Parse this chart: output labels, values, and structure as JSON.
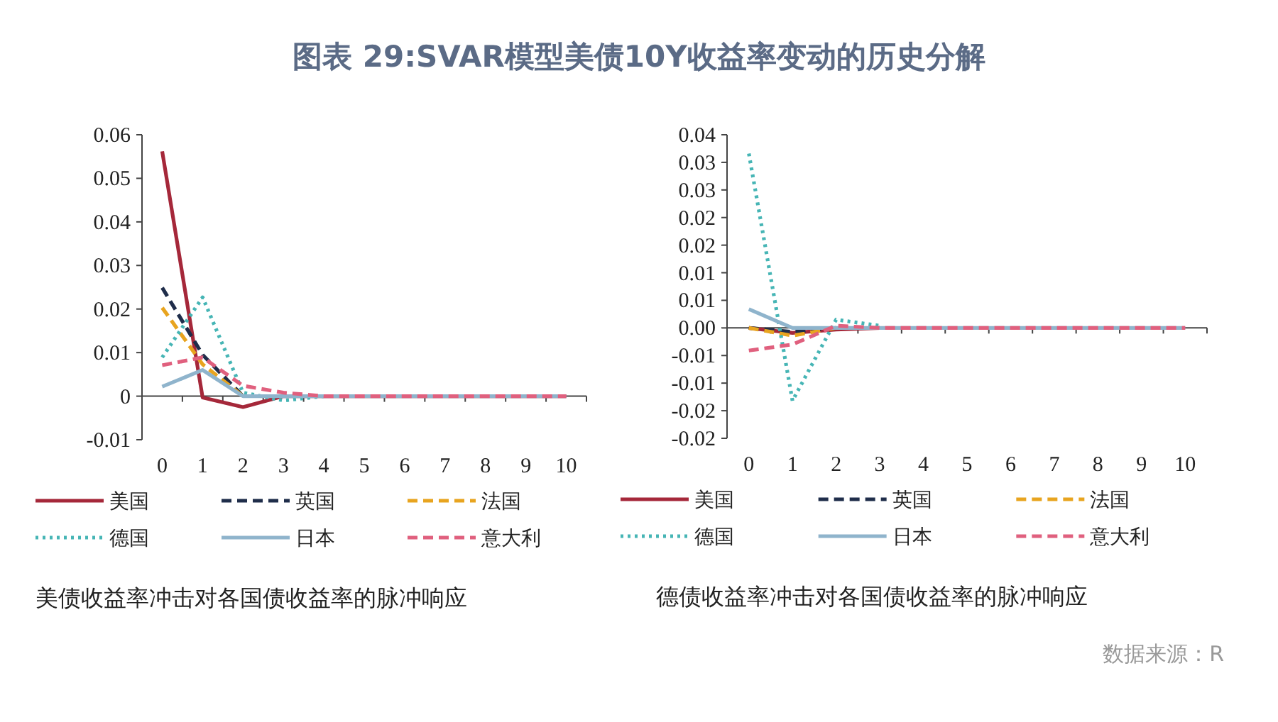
{
  "chart_data": [
    {
      "type": "line",
      "title": "图表 29:SVAR模型美债10Y收益率变动的历史分解",
      "annotations": [
        "美债收益率冲击对各国债收益率的脉冲响应"
      ],
      "categories": [
        "0",
        "1",
        "2",
        "3",
        "4",
        "5",
        "6",
        "7",
        "8",
        "9",
        "10"
      ],
      "ylim": [
        -0.01,
        0.06
      ],
      "yticks": [
        -0.01,
        0,
        0.01,
        0.02,
        0.03,
        0.04,
        0.05,
        0.06
      ],
      "legend": "bottom",
      "series": [
        {
          "name": "美国",
          "color": "#a5283a",
          "line_style": "solid",
          "values": [
            0.0562,
            -0.0003,
            -0.0025,
            0,
            0,
            0,
            0,
            0,
            0,
            0,
            0
          ]
        },
        {
          "name": "英国",
          "color": "#1f2d4a",
          "line_style": "dashed",
          "values": [
            0.0249,
            0.0095,
            0,
            null,
            null,
            null,
            null,
            null,
            null,
            null,
            null
          ]
        },
        {
          "name": "法国",
          "color": "#e8a41f",
          "line_style": "dashed",
          "values": [
            0.0203,
            0.0073,
            0,
            null,
            null,
            null,
            null,
            null,
            null,
            null,
            null
          ]
        },
        {
          "name": "德国",
          "color": "#46b5b5",
          "line_style": "dotted",
          "values": [
            0.0089,
            0.0227,
            0.0008,
            -0.001,
            0,
            null,
            null,
            null,
            null,
            null,
            null
          ]
        },
        {
          "name": "日本",
          "color": "#8fb4cc",
          "line_style": "solid",
          "values": [
            0.0022,
            0.006,
            0,
            0,
            0,
            0,
            0,
            0,
            0,
            0,
            0
          ]
        },
        {
          "name": "意大利",
          "color": "#e0607e",
          "line_style": "dashed",
          "values": [
            0.0071,
            0.0089,
            0.0024,
            0.0008,
            0,
            0,
            0,
            0,
            0,
            0,
            0
          ]
        }
      ]
    },
    {
      "type": "line",
      "annotations": [
        "德债收益率冲击对各国债收益率的脉冲响应",
        "数据来源：R"
      ],
      "categories": [
        "0",
        "1",
        "2",
        "3",
        "4",
        "5",
        "6",
        "7",
        "8",
        "9",
        "10"
      ],
      "ylim": [
        -0.02,
        0.035
      ],
      "yticks": [
        {
          "value": -0.02,
          "label": "-0.02"
        },
        {
          "value": -0.015,
          "label": "-0.02"
        },
        {
          "value": -0.01,
          "label": "-0.01"
        },
        {
          "value": -0.005,
          "label": "-0.01"
        },
        {
          "value": 0,
          "label": "0.00"
        },
        {
          "value": 0.005,
          "label": "0.01"
        },
        {
          "value": 0.01,
          "label": "0.01"
        },
        {
          "value": 0.015,
          "label": "0.02"
        },
        {
          "value": 0.02,
          "label": "0.02"
        },
        {
          "value": 0.025,
          "label": "0.03"
        },
        {
          "value": 0.03,
          "label": "0.03"
        },
        {
          "value": 0.035,
          "label": "0.04"
        }
      ],
      "legend": "bottom",
      "series": [
        {
          "name": "美国",
          "color": "#a5283a",
          "line_style": "solid",
          "values": [
            0,
            -0.0009,
            -0.0003,
            0,
            null,
            null,
            null,
            null,
            null,
            null,
            null
          ]
        },
        {
          "name": "英国",
          "color": "#1f2d4a",
          "line_style": "dashed",
          "values": [
            0,
            -0.0007,
            0,
            null,
            null,
            null,
            null,
            null,
            null,
            null,
            null
          ]
        },
        {
          "name": "法国",
          "color": "#e8a41f",
          "line_style": "dashed",
          "values": [
            0,
            -0.0014,
            0,
            null,
            null,
            null,
            null,
            null,
            null,
            null,
            null
          ]
        },
        {
          "name": "德国",
          "color": "#46b5b5",
          "line_style": "dotted",
          "values": [
            0.0316,
            -0.0132,
            0.0015,
            0.0004,
            null,
            null,
            null,
            null,
            null,
            null,
            null
          ]
        },
        {
          "name": "日本",
          "color": "#8fb4cc",
          "line_style": "solid",
          "values": [
            0.0034,
            0,
            0,
            0,
            0,
            0,
            0,
            0,
            0,
            0,
            0
          ]
        },
        {
          "name": "意大利",
          "color": "#e0607e",
          "line_style": "dashed",
          "values": [
            -0.0041,
            -0.003,
            0.0004,
            0,
            0,
            0,
            0,
            0,
            0,
            0,
            0
          ]
        }
      ]
    }
  ]
}
